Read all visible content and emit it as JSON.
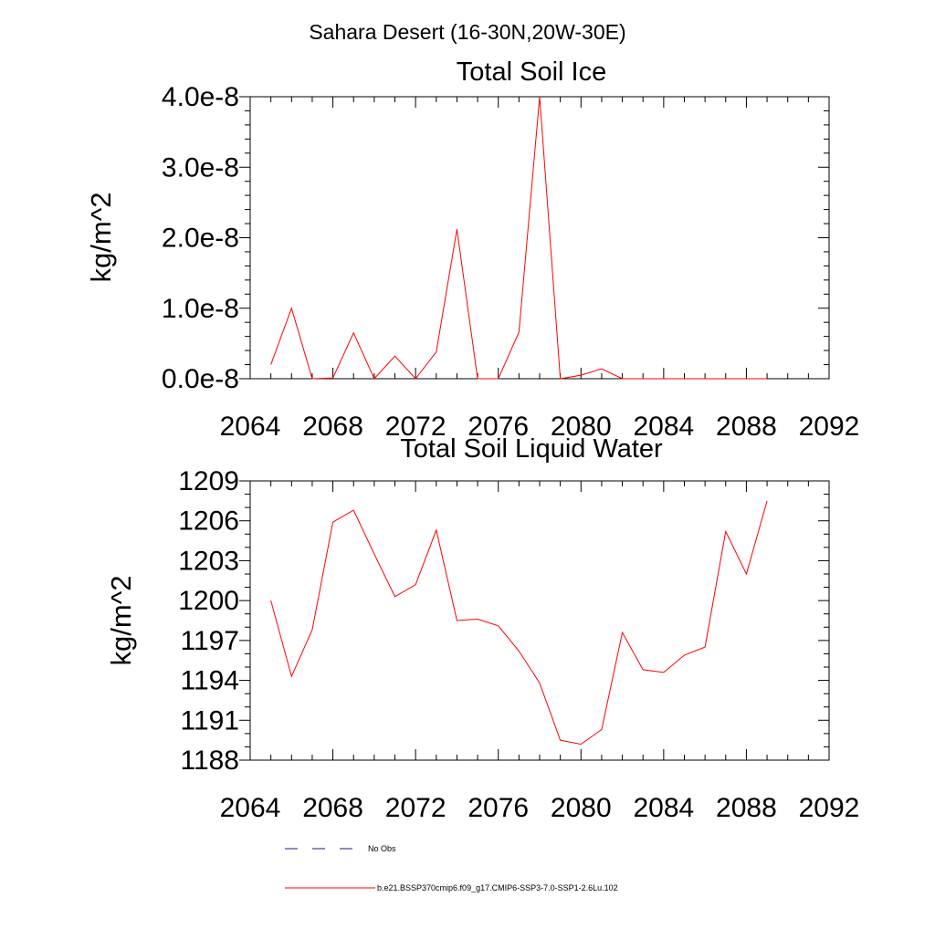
{
  "figure": {
    "title": "Sahara Desert (16-30N,20W-30E)",
    "legend": {
      "obs_label": "No Obs",
      "obs_color": "#1a1a8c",
      "model_label": "b.e21.BSSP370cmip6.f09_g17.CMIP6-SSP3-7.0-SSP1-2.6Lu.102",
      "model_color": "#ff0000"
    }
  },
  "chart_data": [
    {
      "type": "line",
      "title": "Total Soil Ice",
      "xlabel": "",
      "ylabel": "kg/m^2",
      "xlim": [
        2064,
        2092
      ],
      "ylim": [
        0,
        4e-08
      ],
      "xticks": [
        2064,
        2068,
        2072,
        2076,
        2080,
        2084,
        2088,
        2092
      ],
      "xtick_labels": [
        "2064",
        "2068",
        "2072",
        "2076",
        "2080",
        "2084",
        "2088",
        "2092"
      ],
      "yticks": [
        0,
        1e-08,
        2e-08,
        3e-08,
        4e-08
      ],
      "ytick_labels": [
        "0.0e-8",
        "1.0e-8",
        "2.0e-8",
        "3.0e-8",
        "4.0e-8"
      ],
      "grid": false,
      "series": [
        {
          "color": "#ff0000",
          "x": [
            2065,
            2066,
            2067,
            2068,
            2069,
            2070,
            2071,
            2072,
            2073,
            2074,
            2075,
            2076,
            2077,
            2078,
            2079,
            2080,
            2081,
            2082,
            2083,
            2084,
            2085,
            2086,
            2087,
            2088,
            2089
          ],
          "y": [
            2e-09,
            1e-08,
            0.0,
            1e-10,
            6.5e-09,
            0.0,
            3.2e-09,
            0.0,
            3.8e-09,
            2.12e-08,
            0.0,
            0.0,
            6.6e-09,
            4e-08,
            0.0,
            5e-10,
            1.4e-09,
            0.0,
            0.0,
            0.0,
            0.0,
            0.0,
            0.0,
            0.0,
            0.0
          ]
        }
      ]
    },
    {
      "type": "line",
      "title": "Total Soil Liquid Water",
      "xlabel": "",
      "ylabel": "kg/m^2",
      "xlim": [
        2064,
        2092
      ],
      "ylim": [
        1188,
        1209
      ],
      "xticks": [
        2064,
        2068,
        2072,
        2076,
        2080,
        2084,
        2088,
        2092
      ],
      "xtick_labels": [
        "2064",
        "2068",
        "2072",
        "2076",
        "2080",
        "2084",
        "2088",
        "2092"
      ],
      "yticks": [
        1188,
        1191,
        1194,
        1197,
        1200,
        1203,
        1206,
        1209
      ],
      "ytick_labels": [
        "1188",
        "1191",
        "1194",
        "1197",
        "1200",
        "1203",
        "1206",
        "1209"
      ],
      "grid": false,
      "series": [
        {
          "color": "#ff0000",
          "x": [
            2065,
            2066,
            2067,
            2068,
            2069,
            2070,
            2071,
            2072,
            2073,
            2074,
            2075,
            2076,
            2077,
            2078,
            2079,
            2080,
            2081,
            2082,
            2083,
            2084,
            2085,
            2086,
            2087,
            2088,
            2089
          ],
          "y": [
            1200.0,
            1194.3,
            1197.8,
            1205.9,
            1206.8,
            1203.5,
            1200.3,
            1201.2,
            1205.3,
            1198.5,
            1198.6,
            1198.1,
            1196.2,
            1193.8,
            1189.5,
            1189.2,
            1190.3,
            1197.6,
            1194.8,
            1194.6,
            1195.9,
            1196.5,
            1205.2,
            1202.0,
            1207.5
          ]
        }
      ]
    }
  ]
}
